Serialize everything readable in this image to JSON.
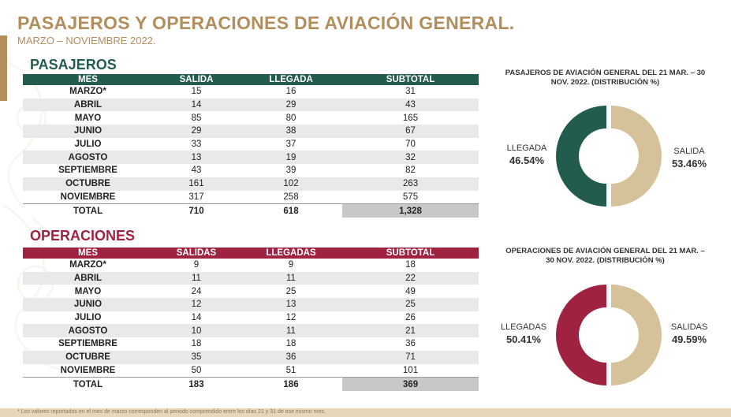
{
  "page": {
    "title": "PASAJEROS Y OPERACIONES DE AVIACIÓN GENERAL.",
    "subtitle": "MARZO – NOVIEMBRE 2022.",
    "footnote": "* Los valores reportados en el mes de marzo corresponden al periodo comprendido entre los días 21 y 31 de ese mismo mes."
  },
  "colors": {
    "gold": "#b38e5d",
    "green": "#235b4e",
    "wine": "#9f2241",
    "beige": "#d6c29a",
    "grey": "#c8c8c8"
  },
  "pasajeros": {
    "section_title": "PASAJEROS",
    "headers": [
      "MES",
      "SALIDA",
      "LLEGADA",
      "SUBTOTAL"
    ],
    "rows": [
      [
        "MARZO*",
        "15",
        "16",
        "31"
      ],
      [
        "ABRIL",
        "14",
        "29",
        "43"
      ],
      [
        "MAYO",
        "85",
        "80",
        "165"
      ],
      [
        "JUNIO",
        "29",
        "38",
        "67"
      ],
      [
        "JULIO",
        "33",
        "37",
        "70"
      ],
      [
        "AGOSTO",
        "13",
        "19",
        "32"
      ],
      [
        "SEPTIEMBRE",
        "43",
        "39",
        "82"
      ],
      [
        "OCTUBRE",
        "161",
        "102",
        "263"
      ],
      [
        "NOVIEMBRE",
        "317",
        "258",
        "575"
      ]
    ],
    "total": [
      "TOTAL",
      "710",
      "618",
      "1,328"
    ]
  },
  "operaciones": {
    "section_title": "OPERACIONES",
    "headers": [
      "MES",
      "SALIDAS",
      "LLEGADAS",
      "SUBTOTAL"
    ],
    "rows": [
      [
        "MARZO*",
        "9",
        "9",
        "18"
      ],
      [
        "ABRIL",
        "11",
        "11",
        "22"
      ],
      [
        "MAYO",
        "24",
        "25",
        "49"
      ],
      [
        "JUNIO",
        "12",
        "13",
        "25"
      ],
      [
        "JULIO",
        "14",
        "12",
        "26"
      ],
      [
        "AGOSTO",
        "10",
        "11",
        "21"
      ],
      [
        "SEPTIEMBRE",
        "18",
        "18",
        "36"
      ],
      [
        "OCTUBRE",
        "35",
        "36",
        "71"
      ],
      [
        "NOVIEMBRE",
        "50",
        "51",
        "101"
      ]
    ],
    "total": [
      "TOTAL",
      "183",
      "186",
      "369"
    ]
  },
  "chart_data": [
    {
      "type": "pie",
      "title": "PASAJEROS DE AVIACIÓN GENERAL DEL 21 MAR. – 30 NOV. 2022. (DISTRIBUCIÓN %)",
      "categories": [
        "SALIDA",
        "LLEGADA"
      ],
      "values": [
        53.46,
        46.54
      ],
      "labels": [
        "53.46%",
        "46.54%"
      ],
      "colors": [
        "#d6c29a",
        "#235b4e"
      ]
    },
    {
      "type": "pie",
      "title": "OPERACIONES DE AVIACIÓN GENERAL DEL 21 MAR. – 30 NOV. 2022. (DISTRIBUCIÓN %)",
      "categories": [
        "SALIDAS",
        "LLEGADAS"
      ],
      "values": [
        49.59,
        50.41
      ],
      "labels": [
        "49.59%",
        "50.41%"
      ],
      "colors": [
        "#d6c29a",
        "#9f2241"
      ]
    }
  ]
}
